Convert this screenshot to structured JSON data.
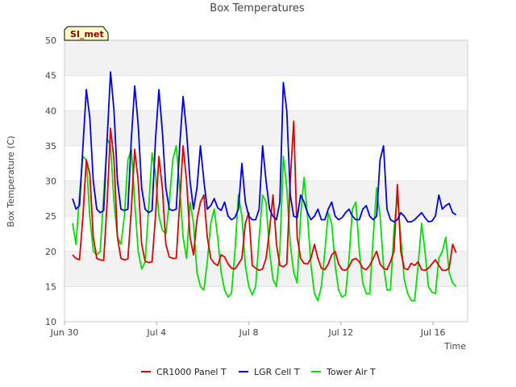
{
  "chart_data": {
    "type": "line",
    "title": "Box Temperatures",
    "xlabel": "Time",
    "ylabel": "Box Temperature (C)",
    "site_tag": "SI_met",
    "xlim": [
      0,
      17.5
    ],
    "ylim": [
      10,
      50
    ],
    "yticks": [
      10,
      15,
      20,
      25,
      30,
      35,
      40,
      45,
      50
    ],
    "xticks": [
      {
        "pos": 0,
        "label": "Jun 30"
      },
      {
        "pos": 4,
        "label": "Jul 4"
      },
      {
        "pos": 8,
        "label": "Jul 8"
      },
      {
        "pos": 12,
        "label": "Jul 12"
      },
      {
        "pos": 16,
        "label": "Jul 16"
      }
    ],
    "x": [
      0.35,
      0.5,
      0.65,
      0.8,
      0.95,
      1.1,
      1.25,
      1.4,
      1.55,
      1.7,
      1.85,
      2.0,
      2.15,
      2.3,
      2.45,
      2.6,
      2.75,
      2.9,
      3.05,
      3.2,
      3.35,
      3.5,
      3.65,
      3.8,
      3.95,
      4.1,
      4.25,
      4.4,
      4.55,
      4.7,
      4.85,
      5.0,
      5.15,
      5.3,
      5.45,
      5.6,
      5.75,
      5.9,
      6.05,
      6.2,
      6.35,
      6.5,
      6.65,
      6.8,
      6.95,
      7.1,
      7.25,
      7.4,
      7.55,
      7.7,
      7.85,
      8.0,
      8.15,
      8.3,
      8.45,
      8.6,
      8.75,
      8.9,
      9.05,
      9.2,
      9.35,
      9.5,
      9.65,
      9.8,
      9.95,
      10.1,
      10.25,
      10.4,
      10.55,
      10.7,
      10.85,
      11.0,
      11.15,
      11.3,
      11.45,
      11.6,
      11.75,
      11.9,
      12.05,
      12.2,
      12.35,
      12.5,
      12.65,
      12.8,
      12.95,
      13.1,
      13.25,
      13.4,
      13.55,
      13.7,
      13.85,
      14.0,
      14.15,
      14.3,
      14.45,
      14.6,
      14.75,
      14.9,
      15.05,
      15.2,
      15.35,
      15.5,
      15.65,
      15.8,
      15.95,
      16.1,
      16.25,
      16.4,
      16.55,
      16.7,
      16.85,
      17.0
    ],
    "series": [
      {
        "name": "CR1000 Panel T",
        "color": "#e00000",
        "values": [
          19.5,
          19.0,
          18.8,
          25.0,
          33.0,
          31.0,
          22.0,
          19.0,
          18.8,
          18.7,
          27.0,
          37.5,
          33.0,
          22.0,
          19.0,
          18.8,
          18.9,
          26.0,
          34.5,
          30.0,
          21.0,
          18.6,
          18.4,
          18.5,
          25.0,
          33.5,
          29.0,
          21.0,
          19.2,
          19.0,
          19.0,
          27.0,
          35.0,
          30.0,
          22.0,
          19.5,
          24.5,
          27.0,
          28.0,
          22.0,
          19.0,
          18.3,
          18.0,
          19.5,
          19.2,
          18.2,
          17.6,
          17.5,
          18.2,
          19.0,
          24.0,
          25.5,
          18.0,
          17.6,
          17.3,
          17.5,
          19.0,
          23.0,
          28.0,
          21.0,
          18.0,
          17.8,
          18.2,
          30.0,
          38.5,
          22.0,
          19.0,
          18.3,
          18.2,
          19.0,
          21.0,
          19.0,
          17.6,
          17.4,
          18.2,
          19.5,
          20.0,
          18.2,
          17.4,
          17.3,
          17.8,
          18.8,
          19.0,
          18.5,
          17.6,
          17.4,
          18.0,
          19.0,
          20.0,
          18.2,
          17.6,
          17.4,
          18.5,
          20.0,
          29.5,
          20.0,
          17.6,
          17.4,
          18.3,
          18.0,
          18.5,
          17.4,
          17.3,
          17.6,
          18.2,
          18.8,
          18.0,
          17.3,
          17.3,
          17.6,
          21.0,
          19.8
        ]
      },
      {
        "name": "LGR Cell T",
        "color": "#0000e0",
        "values": [
          27.5,
          26.0,
          26.5,
          35.0,
          43.0,
          39.0,
          30.0,
          26.0,
          25.5,
          25.8,
          36.0,
          45.5,
          40.0,
          30.0,
          26.0,
          25.8,
          26.0,
          36.0,
          43.5,
          38.0,
          29.0,
          26.0,
          25.5,
          25.8,
          36.0,
          43.0,
          37.0,
          29.0,
          26.0,
          25.8,
          26.0,
          35.0,
          42.0,
          37.0,
          30.0,
          26.0,
          29.0,
          35.0,
          30.0,
          26.0,
          26.5,
          27.5,
          26.2,
          25.8,
          27.0,
          25.0,
          24.5,
          24.8,
          26.0,
          32.5,
          27.0,
          25.0,
          24.5,
          24.5,
          26.0,
          35.0,
          30.0,
          26.0,
          25.0,
          24.5,
          27.0,
          44.0,
          40.0,
          28.0,
          25.0,
          24.8,
          28.0,
          27.0,
          25.5,
          24.5,
          25.0,
          26.0,
          24.5,
          24.5,
          26.0,
          27.0,
          25.0,
          24.5,
          24.8,
          25.5,
          26.0,
          25.0,
          24.5,
          24.5,
          26.0,
          26.5,
          25.0,
          24.5,
          25.0,
          33.0,
          35.0,
          26.0,
          24.5,
          24.2,
          24.5,
          25.5,
          25.0,
          24.2,
          24.2,
          24.5,
          25.0,
          25.5,
          24.8,
          24.2,
          24.3,
          25.0,
          28.0,
          26.0,
          26.5,
          26.8,
          25.5,
          25.2
        ]
      },
      {
        "name": "Tower Air T",
        "color": "#00e000",
        "values": [
          24.0,
          21.0,
          28.0,
          33.5,
          33.0,
          25.0,
          20.0,
          19.5,
          20.0,
          28.0,
          36.0,
          35.0,
          27.0,
          22.0,
          21.0,
          25.0,
          33.0,
          34.5,
          27.0,
          20.0,
          17.5,
          18.5,
          26.0,
          34.0,
          31.0,
          25.0,
          23.0,
          22.5,
          27.0,
          33.0,
          35.0,
          29.0,
          22.0,
          19.0,
          27.0,
          24.0,
          17.0,
          15.0,
          14.5,
          18.5,
          24.0,
          26.0,
          22.0,
          17.0,
          14.5,
          13.5,
          14.0,
          20.0,
          28.0,
          25.0,
          18.0,
          15.0,
          13.8,
          15.0,
          22.0,
          28.0,
          27.0,
          20.0,
          16.0,
          15.0,
          20.0,
          33.5,
          29.0,
          21.0,
          17.0,
          15.5,
          25.0,
          30.5,
          25.0,
          18.0,
          14.0,
          13.0,
          15.0,
          20.0,
          25.5,
          24.0,
          18.0,
          14.5,
          13.5,
          13.8,
          19.0,
          26.0,
          27.0,
          20.0,
          15.5,
          14.0,
          14.0,
          22.0,
          29.0,
          25.0,
          18.0,
          14.5,
          14.5,
          23.0,
          28.0,
          22.0,
          16.0,
          14.0,
          13.0,
          13.0,
          18.0,
          24.0,
          20.0,
          15.0,
          14.2,
          14.0,
          19.0,
          20.0,
          22.0,
          17.0,
          15.5,
          15.0
        ]
      }
    ],
    "legend_position": "bottom-center",
    "band_shading": "alternating horizontal bands"
  }
}
